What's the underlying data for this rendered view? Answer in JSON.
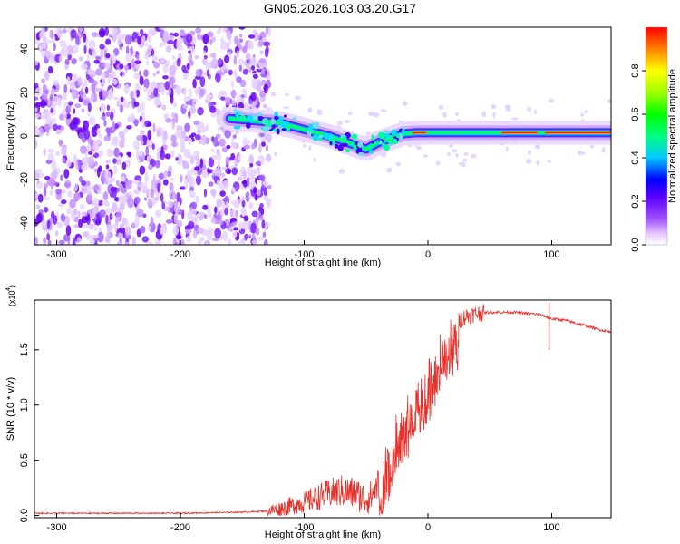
{
  "title": "GN05.2026.103.03.20.G17",
  "chart_data": [
    {
      "type": "heatmap",
      "name": "spectrogram",
      "xlabel": "Height of straight line (km)",
      "ylabel": "Frequency (Hz)",
      "xlim": [
        -318,
        148
      ],
      "ylim": [
        -50,
        50
      ],
      "xticks": [
        -300,
        -200,
        -100,
        0,
        100
      ],
      "yticks": [
        -40,
        -20,
        0,
        20,
        40
      ],
      "ridge": {
        "x": [
          -160,
          -140,
          -120,
          -100,
          -80,
          -60,
          -50,
          -40,
          -30,
          -20,
          -10,
          0,
          20,
          40,
          60,
          80,
          100,
          120,
          148
        ],
        "y": [
          8,
          7,
          6,
          3,
          0,
          -4,
          -6,
          -3,
          -1,
          1,
          1.5,
          1.5,
          1.5,
          1.5,
          1.5,
          1.5,
          1.5,
          1.5,
          1.5
        ]
      },
      "colorbar": {
        "label": "Normalized spectral amplitude",
        "range": [
          0,
          1
        ],
        "ticks": [
          "0.0",
          "0.2",
          "0.4",
          "0.6",
          "0.8"
        ],
        "tick_values": [
          0.0,
          0.2,
          0.4,
          0.6,
          0.8
        ]
      }
    },
    {
      "type": "line",
      "name": "snr",
      "xlabel": "Height of straight line (km)",
      "ylabel": "SNR (10 * v/v)",
      "scale_label": "(x10",
      "scale_exp": "4",
      "scale_close": ")",
      "xlim": [
        -318,
        148
      ],
      "ylim": [
        -0.02,
        1.95
      ],
      "xticks": [
        -300,
        -200,
        -100,
        0,
        100
      ],
      "yticks": [
        "0.0",
        "0.5",
        "1.0",
        "1.5"
      ],
      "ytick_values": [
        0.0,
        0.5,
        1.0,
        1.5
      ],
      "color": "#e8302a",
      "series": [
        {
          "name": "SNR",
          "x": [
            -318,
            -300,
            -250,
            -200,
            -150,
            -130,
            -120,
            -110,
            -100,
            -90,
            -80,
            -70,
            -60,
            -50,
            -45,
            -40,
            -35,
            -30,
            -25,
            -20,
            -15,
            -10,
            -5,
            0,
            5,
            10,
            20,
            30,
            40,
            50,
            60,
            70,
            80,
            90,
            95,
            100,
            110,
            120,
            130,
            140,
            148
          ],
          "y": [
            0.02,
            0.02,
            0.02,
            0.02,
            0.03,
            0.04,
            0.06,
            0.09,
            0.12,
            0.16,
            0.2,
            0.22,
            0.2,
            0.15,
            0.18,
            0.3,
            0.5,
            0.7,
            0.85,
            0.95,
            1.0,
            1.1,
            1.2,
            1.3,
            1.45,
            1.55,
            1.72,
            1.8,
            1.83,
            1.84,
            1.84,
            1.84,
            1.83,
            1.82,
            1.8,
            1.78,
            1.77,
            1.74,
            1.71,
            1.68,
            1.66
          ]
        }
      ]
    }
  ]
}
